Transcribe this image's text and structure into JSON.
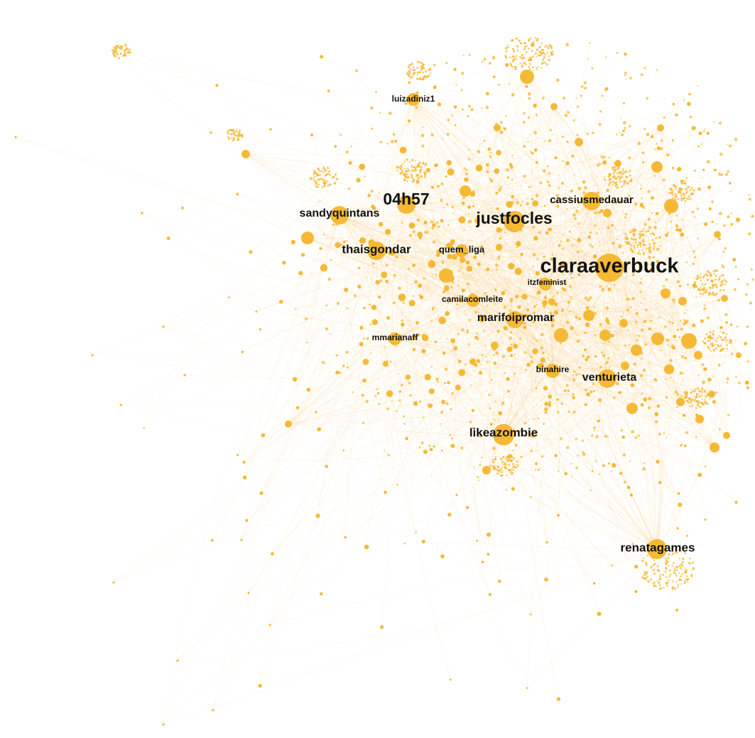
{
  "graph": {
    "node_color": "#f6b935",
    "edge_color": "#f7c468",
    "labeled_nodes": [
      {
        "id": "luizadiniz1",
        "label": "luizadiniz1"
      },
      {
        "id": "04h57",
        "label": "04h57"
      },
      {
        "id": "sandyquintans",
        "label": "sandyquintans"
      },
      {
        "id": "cassiusmedauar",
        "label": "cassiusmedauar"
      },
      {
        "id": "justfocles",
        "label": "justfocles"
      },
      {
        "id": "thaisgondar",
        "label": "thaisgondar"
      },
      {
        "id": "quem_liga",
        "label": "quem_liga"
      },
      {
        "id": "claraaverbuck",
        "label": "claraaverbuck"
      },
      {
        "id": "itzfeminist",
        "label": "itzfeminist"
      },
      {
        "id": "camilacomleite",
        "label": "camilacomleite"
      },
      {
        "id": "marifoipromar",
        "label": "marifoipromar"
      },
      {
        "id": "mmarianaff",
        "label": "mmarianaff"
      },
      {
        "id": "binahire",
        "label": "binahire"
      },
      {
        "id": "venturieta",
        "label": "venturieta"
      },
      {
        "id": "likeazombie",
        "label": "likeazombie"
      },
      {
        "id": "renatagames",
        "label": "renatagames"
      }
    ]
  }
}
